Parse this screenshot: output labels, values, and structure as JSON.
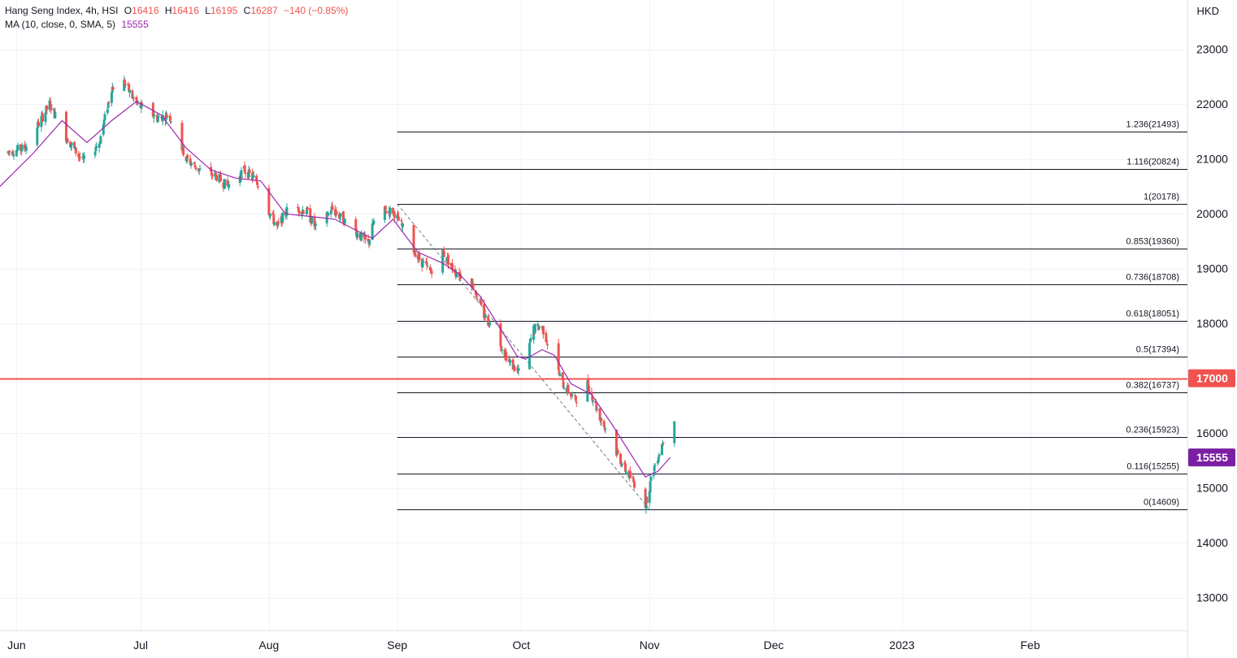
{
  "header": {
    "symbol": "Hang Seng Index, 4h, HSI",
    "open_label": "O",
    "open": "16416",
    "high_label": "H",
    "high": "16416",
    "low_label": "L",
    "low": "16195",
    "close_label": "C",
    "close": "16287",
    "change": "−140 (−0.85%)",
    "indicator": "MA (10, close, 0, SMA, 5)",
    "indicator_value": "15555"
  },
  "currency": "HKD",
  "colors": {
    "up": "#26a69a",
    "down": "#ef5350",
    "ma": "#9c27b0",
    "level_line": "#ef5350",
    "fib_line": "#131722",
    "grid": "#f0f3fa",
    "axis_text": "#131722"
  },
  "chart_data": {
    "type": "candlestick",
    "timeframe": "4h",
    "y_axis": {
      "ylim": [
        12400,
        23900
      ],
      "ticks": [
        13000,
        14000,
        15000,
        16000,
        17000,
        18000,
        19000,
        20000,
        21000,
        22000,
        23000
      ]
    },
    "x_axis": {
      "range": [
        "2022-05-28",
        "2023-03-11"
      ],
      "ticks": [
        {
          "label": "Jun",
          "date": "2022-06-01"
        },
        {
          "label": "Jul",
          "date": "2022-07-01"
        },
        {
          "label": "Aug",
          "date": "2022-08-01"
        },
        {
          "label": "Sep",
          "date": "2022-09-01"
        },
        {
          "label": "Oct",
          "date": "2022-10-01"
        },
        {
          "label": "Nov",
          "date": "2022-11-01"
        },
        {
          "label": "Dec",
          "date": "2022-12-01"
        },
        {
          "label": "2023",
          "date": "2023-01-01"
        },
        {
          "label": "Feb",
          "date": "2023-02-01"
        }
      ]
    },
    "close_path": [
      {
        "date": "2022-05-28",
        "close": 21100
      },
      {
        "date": "2022-06-03",
        "close": 21200
      },
      {
        "date": "2022-06-09",
        "close": 22000
      },
      {
        "date": "2022-06-13",
        "close": 21400
      },
      {
        "date": "2022-06-17",
        "close": 20950
      },
      {
        "date": "2022-06-21",
        "close": 21300
      },
      {
        "date": "2022-06-24",
        "close": 22300
      },
      {
        "date": "2022-06-27",
        "close": 22400
      },
      {
        "date": "2022-06-30",
        "close": 22000
      },
      {
        "date": "2022-07-05",
        "close": 21750
      },
      {
        "date": "2022-07-08",
        "close": 21800
      },
      {
        "date": "2022-07-12",
        "close": 21000
      },
      {
        "date": "2022-07-16",
        "close": 20750
      },
      {
        "date": "2022-07-19",
        "close": 20700
      },
      {
        "date": "2022-07-22",
        "close": 20500
      },
      {
        "date": "2022-07-26",
        "close": 20800
      },
      {
        "date": "2022-07-29",
        "close": 20600
      },
      {
        "date": "2022-08-01",
        "close": 20050
      },
      {
        "date": "2022-08-03",
        "close": 19750
      },
      {
        "date": "2022-08-06",
        "close": 20150
      },
      {
        "date": "2022-08-10",
        "close": 20050
      },
      {
        "date": "2022-08-13",
        "close": 19650
      },
      {
        "date": "2022-08-16",
        "close": 20100
      },
      {
        "date": "2022-08-21",
        "close": 19750
      },
      {
        "date": "2022-08-25",
        "close": 19450
      },
      {
        "date": "2022-08-27",
        "close": 20050
      },
      {
        "date": "2022-08-31",
        "close": 20050
      },
      {
        "date": "2022-09-03",
        "close": 19650
      },
      {
        "date": "2022-09-06",
        "close": 19200
      },
      {
        "date": "2022-09-09",
        "close": 18950
      },
      {
        "date": "2022-09-12",
        "close": 19300
      },
      {
        "date": "2022-09-15",
        "close": 18950
      },
      {
        "date": "2022-09-19",
        "close": 18750
      },
      {
        "date": "2022-09-22",
        "close": 18150
      },
      {
        "date": "2022-09-25",
        "close": 17800
      },
      {
        "date": "2022-09-28",
        "close": 17300
      },
      {
        "date": "2022-10-01",
        "close": 17050
      },
      {
        "date": "2022-10-04",
        "close": 17900
      },
      {
        "date": "2022-10-06",
        "close": 17950
      },
      {
        "date": "2022-10-08",
        "close": 17500
      },
      {
        "date": "2022-10-11",
        "close": 16900
      },
      {
        "date": "2022-10-14",
        "close": 16600
      },
      {
        "date": "2022-10-17",
        "close": 16900
      },
      {
        "date": "2022-10-20",
        "close": 16300
      },
      {
        "date": "2022-10-23",
        "close": 15800
      },
      {
        "date": "2022-10-26",
        "close": 15350
      },
      {
        "date": "2022-10-29",
        "close": 15000
      },
      {
        "date": "2022-10-31",
        "close": 14700
      },
      {
        "date": "2022-11-02",
        "close": 15350
      },
      {
        "date": "2022-11-04",
        "close": 15800
      },
      {
        "date": "2022-11-06",
        "close": 16450
      },
      {
        "date": "2022-11-07",
        "close": 16287
      }
    ],
    "ma_series": {
      "name": "MA (10, close, 0, SMA, 5)",
      "last_value": 15555,
      "points": [
        {
          "date": "2022-05-28",
          "value": 20500
        },
        {
          "date": "2022-06-05",
          "value": 21100
        },
        {
          "date": "2022-06-12",
          "value": 21700
        },
        {
          "date": "2022-06-18",
          "value": 21300
        },
        {
          "date": "2022-06-24",
          "value": 21700
        },
        {
          "date": "2022-06-30",
          "value": 22050
        },
        {
          "date": "2022-07-06",
          "value": 21800
        },
        {
          "date": "2022-07-12",
          "value": 21200
        },
        {
          "date": "2022-07-18",
          "value": 20800
        },
        {
          "date": "2022-07-24",
          "value": 20650
        },
        {
          "date": "2022-07-30",
          "value": 20600
        },
        {
          "date": "2022-08-05",
          "value": 20000
        },
        {
          "date": "2022-08-11",
          "value": 19950
        },
        {
          "date": "2022-08-17",
          "value": 19900
        },
        {
          "date": "2022-08-22",
          "value": 19700
        },
        {
          "date": "2022-08-26",
          "value": 19550
        },
        {
          "date": "2022-08-31",
          "value": 19900
        },
        {
          "date": "2022-09-06",
          "value": 19300
        },
        {
          "date": "2022-09-12",
          "value": 19100
        },
        {
          "date": "2022-09-16",
          "value": 18900
        },
        {
          "date": "2022-09-21",
          "value": 18500
        },
        {
          "date": "2022-09-26",
          "value": 17900
        },
        {
          "date": "2022-09-30",
          "value": 17400
        },
        {
          "date": "2022-10-02",
          "value": 17350
        },
        {
          "date": "2022-10-06",
          "value": 17520
        },
        {
          "date": "2022-10-09",
          "value": 17420
        },
        {
          "date": "2022-10-13",
          "value": 16900
        },
        {
          "date": "2022-10-18",
          "value": 16700
        },
        {
          "date": "2022-10-23",
          "value": 16150
        },
        {
          "date": "2022-10-28",
          "value": 15550
        },
        {
          "date": "2022-10-31",
          "value": 15200
        },
        {
          "date": "2022-11-03",
          "value": 15300
        },
        {
          "date": "2022-11-06",
          "value": 15555
        }
      ]
    },
    "horizontal_line": {
      "value": 17000,
      "label": "17000"
    },
    "last_price_label": {
      "value": 15555,
      "label": "15555"
    },
    "fibonacci": {
      "start_date": "2022-09-01",
      "trend_from": {
        "date": "2022-09-01",
        "value": 20178
      },
      "trend_to": {
        "date": "2022-11-01",
        "value": 14609
      },
      "levels": [
        {
          "ratio": "1.236",
          "value": 21493,
          "label": "1.236(21493)"
        },
        {
          "ratio": "1.116",
          "value": 20824,
          "label": "1.116(20824)"
        },
        {
          "ratio": "1",
          "value": 20178,
          "label": "1(20178)"
        },
        {
          "ratio": "0.853",
          "value": 19360,
          "label": "0.853(19360)"
        },
        {
          "ratio": "0.736",
          "value": 18708,
          "label": "0.736(18708)"
        },
        {
          "ratio": "0.618",
          "value": 18051,
          "label": "0.618(18051)"
        },
        {
          "ratio": "0.5",
          "value": 17394,
          "label": "0.5(17394)"
        },
        {
          "ratio": "0.382",
          "value": 16737,
          "label": "0.382(16737)"
        },
        {
          "ratio": "0.236",
          "value": 15923,
          "label": "0.236(15923)"
        },
        {
          "ratio": "0.116",
          "value": 15255,
          "label": "0.116(15255)"
        },
        {
          "ratio": "0",
          "value": 14609,
          "label": "0(14609)"
        }
      ]
    }
  }
}
